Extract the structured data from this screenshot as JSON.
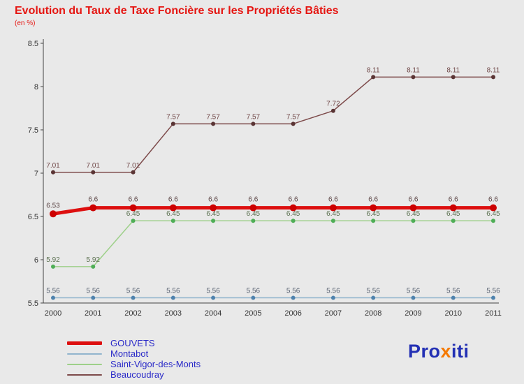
{
  "header": {
    "title": "Evolution du Taux de Taxe Foncière sur les Propriétés Bâties",
    "subtitle": "(en %)"
  },
  "chart_data": {
    "type": "line",
    "title": "Evolution du Taux de Taxe Foncière sur les Propriétés Bâties",
    "subtitle": "(en %)",
    "x": [
      "2000",
      "2001",
      "2002",
      "2003",
      "2004",
      "2005",
      "2006",
      "2007",
      "2008",
      "2009",
      "2010",
      "2011"
    ],
    "ylim": [
      5.5,
      8.5
    ],
    "ytick_values": [
      5.5,
      6,
      6.5,
      7,
      7.5,
      8,
      8.5
    ],
    "ytick_labels": [
      "5.5",
      "6",
      "6.5",
      "7",
      "7.5",
      "8",
      "8.5"
    ],
    "grid": false,
    "legend_position": "bottom-left",
    "axis_color": "#444444",
    "series": [
      {
        "name": "GOUVETS",
        "color": "#dd0f0f",
        "dot_color": "#cc0000",
        "label_color": "#5c4646",
        "width": 5,
        "dot": 5,
        "values": [
          6.53,
          6.6,
          6.6,
          6.6,
          6.6,
          6.6,
          6.6,
          6.6,
          6.6,
          6.6,
          6.6,
          6.6
        ],
        "labels": [
          "6.53",
          "6.6",
          "6.6",
          "6.6",
          "6.6",
          "6.6",
          "6.6",
          "6.6",
          "6.6",
          "6.6",
          "6.6",
          "6.6"
        ]
      },
      {
        "name": "Montabot",
        "color": "#92b5cd",
        "dot_color": "#4e82ad",
        "label_color": "#566070",
        "width": 1.5,
        "dot": 3,
        "values": [
          5.56,
          5.56,
          5.56,
          5.56,
          5.56,
          5.56,
          5.56,
          5.56,
          5.56,
          5.56,
          5.56,
          5.56
        ],
        "labels": [
          "5.56",
          "5.56",
          "5.56",
          "5.56",
          "5.56",
          "5.56",
          "5.56",
          "5.56",
          "5.56",
          "5.56",
          "5.56",
          "5.56"
        ]
      },
      {
        "name": "Saint-Vigor-des-Monts",
        "color": "#9ed08a",
        "dot_color": "#4fae57",
        "label_color": "#5b7050",
        "width": 1.5,
        "dot": 3,
        "values": [
          5.92,
          5.92,
          6.45,
          6.45,
          6.45,
          6.45,
          6.45,
          6.45,
          6.45,
          6.45,
          6.45,
          6.45
        ],
        "labels": [
          "5.92",
          "5.92",
          "6.45",
          "6.45",
          "6.45",
          "6.45",
          "6.45",
          "6.45",
          "6.45",
          "6.45",
          "6.45",
          "6.45"
        ]
      },
      {
        "name": "Beaucoudray",
        "color": "#7d4a4a",
        "dot_color": "#5a3434",
        "label_color": "#6e4545",
        "width": 1.5,
        "dot": 3,
        "values": [
          7.01,
          7.01,
          7.01,
          7.57,
          7.57,
          7.57,
          7.57,
          7.72,
          8.11,
          8.11,
          8.11,
          8.11
        ],
        "labels": [
          "7.01",
          "7.01",
          "7.01",
          "7.57",
          "7.57",
          "7.57",
          "7.57",
          "7.72",
          "8.11",
          "8.11",
          "8.11",
          "8.11"
        ]
      }
    ]
  },
  "legend": {
    "items": [
      "GOUVETS",
      "Montabot",
      "Saint-Vigor-des-Monts",
      "Beaucoudray"
    ]
  },
  "logo": {
    "part1": "Pro",
    "part2": "x",
    "part3": "iti",
    "blue": "#2330b4",
    "orange": "#f57900"
  }
}
